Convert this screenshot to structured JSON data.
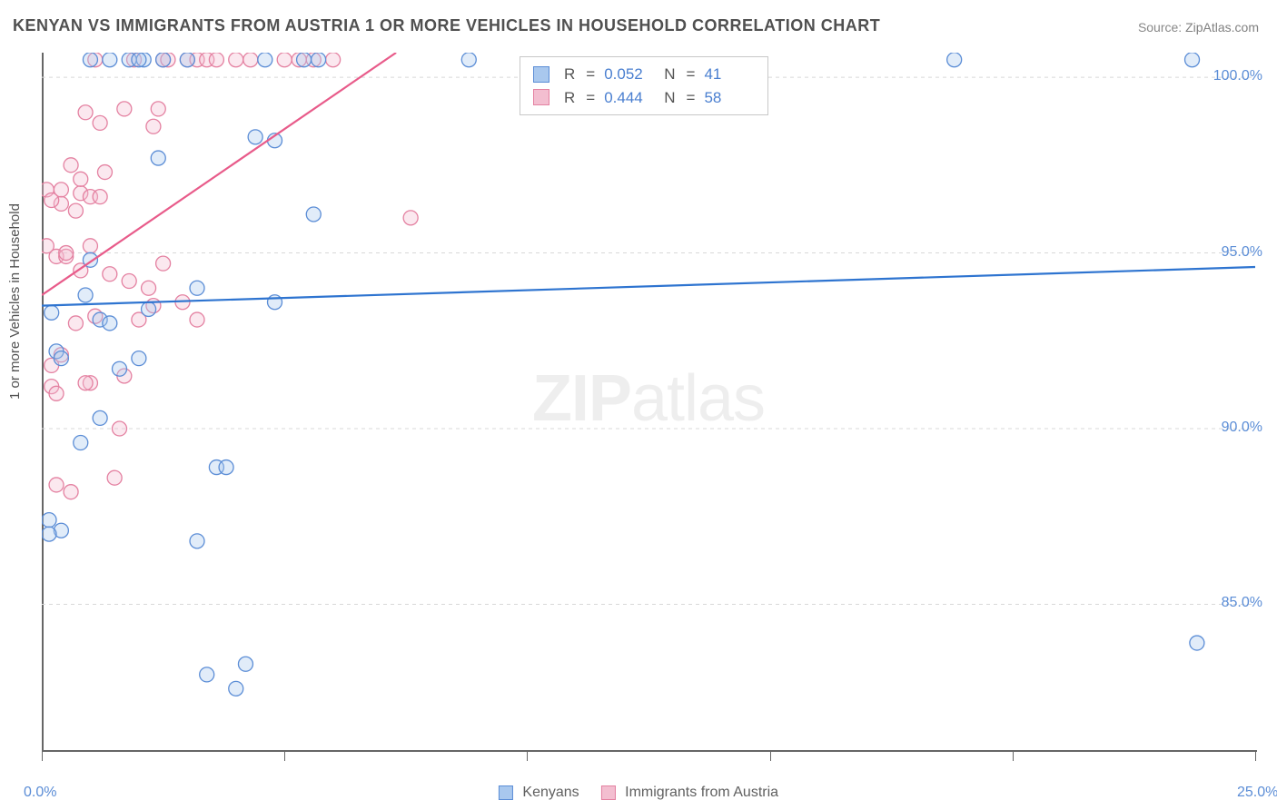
{
  "title": "KENYAN VS IMMIGRANTS FROM AUSTRIA 1 OR MORE VEHICLES IN HOUSEHOLD CORRELATION CHART",
  "source": {
    "label": "Source:",
    "value": "ZipAtlas.com"
  },
  "watermark": {
    "zip": "ZIP",
    "atlas": "atlas"
  },
  "chart": {
    "type": "scatter",
    "xlim": [
      0,
      25
    ],
    "ylim": [
      80.8,
      100.7
    ],
    "ylabel": "1 or more Vehicles in Household",
    "yticks": [
      {
        "v": 100.0,
        "label": "100.0%"
      },
      {
        "v": 95.0,
        "label": "95.0%"
      },
      {
        "v": 90.0,
        "label": "90.0%"
      },
      {
        "v": 85.0,
        "label": "85.0%"
      }
    ],
    "xticks": [
      {
        "v": 0,
        "label": "0.0%"
      },
      {
        "v": 5,
        "label": ""
      },
      {
        "v": 10,
        "label": ""
      },
      {
        "v": 15,
        "label": ""
      },
      {
        "v": 20,
        "label": ""
      },
      {
        "v": 25,
        "label": "25.0%"
      }
    ],
    "grid_color": "#d8d8d8",
    "axis_color": "#666666",
    "background_color": "#ffffff",
    "marker_radius": 8,
    "marker_opacity": 0.35,
    "line_width": 2.2,
    "series": [
      {
        "name": "Kenyans",
        "fill": "#a9c8ee",
        "stroke": "#5b8dd6",
        "line_color": "#2e74d0",
        "trend": {
          "x1": 0,
          "y1": 93.5,
          "x2": 25,
          "y2": 94.6
        },
        "stats": {
          "R": "0.052",
          "N": "41"
        },
        "points": [
          [
            0.2,
            93.3
          ],
          [
            0.3,
            92.2
          ],
          [
            0.4,
            87.1
          ],
          [
            0.4,
            92.0
          ],
          [
            0.8,
            89.6
          ],
          [
            0.9,
            93.8
          ],
          [
            1.0,
            100.5
          ],
          [
            1.0,
            94.8
          ],
          [
            1.2,
            93.1
          ],
          [
            1.2,
            90.3
          ],
          [
            1.4,
            100.5
          ],
          [
            1.4,
            93.0
          ],
          [
            1.6,
            91.7
          ],
          [
            1.8,
            100.5
          ],
          [
            2.0,
            92.0
          ],
          [
            2.1,
            100.5
          ],
          [
            2.2,
            93.4
          ],
          [
            2.4,
            97.7
          ],
          [
            2.5,
            100.5
          ],
          [
            3.0,
            100.5
          ],
          [
            3.2,
            94.0
          ],
          [
            3.2,
            86.8
          ],
          [
            3.4,
            83.0
          ],
          [
            3.6,
            88.9
          ],
          [
            3.8,
            88.9
          ],
          [
            4.0,
            82.6
          ],
          [
            4.2,
            83.3
          ],
          [
            4.4,
            98.3
          ],
          [
            4.6,
            100.5
          ],
          [
            4.8,
            93.6
          ],
          [
            4.8,
            98.2
          ],
          [
            5.4,
            100.5
          ],
          [
            5.6,
            96.1
          ],
          [
            5.7,
            100.5
          ],
          [
            8.8,
            100.5
          ],
          [
            18.8,
            100.5
          ],
          [
            23.7,
            100.5
          ],
          [
            23.8,
            83.9
          ],
          [
            0.15,
            87.4
          ],
          [
            0.15,
            87.0
          ],
          [
            2.0,
            100.5
          ]
        ]
      },
      {
        "name": "Immigrants from Austria",
        "fill": "#f3bed0",
        "stroke": "#e481a1",
        "line_color": "#e85b8a",
        "trend": {
          "x1": 0,
          "y1": 93.8,
          "x2": 7.3,
          "y2": 100.7
        },
        "stats": {
          "R": "0.444",
          "N": "58"
        },
        "points": [
          [
            0.1,
            96.8
          ],
          [
            0.1,
            95.2
          ],
          [
            0.2,
            91.2
          ],
          [
            0.2,
            91.8
          ],
          [
            0.3,
            94.9
          ],
          [
            0.3,
            88.4
          ],
          [
            0.3,
            91.0
          ],
          [
            0.4,
            96.4
          ],
          [
            0.4,
            96.8
          ],
          [
            0.5,
            94.9
          ],
          [
            0.5,
            95.0
          ],
          [
            0.6,
            97.5
          ],
          [
            0.6,
            88.2
          ],
          [
            0.7,
            93.0
          ],
          [
            0.7,
            96.2
          ],
          [
            0.8,
            94.5
          ],
          [
            0.8,
            96.7
          ],
          [
            0.8,
            97.1
          ],
          [
            0.9,
            99.0
          ],
          [
            1.0,
            96.6
          ],
          [
            1.0,
            91.3
          ],
          [
            1.0,
            95.2
          ],
          [
            1.1,
            100.5
          ],
          [
            1.2,
            96.6
          ],
          [
            1.2,
            98.7
          ],
          [
            1.3,
            97.3
          ],
          [
            1.4,
            94.4
          ],
          [
            1.5,
            88.6
          ],
          [
            1.6,
            90.0
          ],
          [
            1.7,
            99.1
          ],
          [
            1.8,
            94.2
          ],
          [
            1.9,
            100.5
          ],
          [
            2.0,
            93.1
          ],
          [
            2.2,
            94.0
          ],
          [
            2.3,
            93.5
          ],
          [
            2.3,
            98.6
          ],
          [
            2.4,
            99.1
          ],
          [
            2.5,
            100.5
          ],
          [
            2.5,
            94.7
          ],
          [
            2.6,
            100.5
          ],
          [
            2.9,
            93.6
          ],
          [
            3.0,
            100.5
          ],
          [
            3.2,
            100.5
          ],
          [
            3.2,
            93.1
          ],
          [
            3.4,
            100.5
          ],
          [
            3.6,
            100.5
          ],
          [
            4.0,
            100.5
          ],
          [
            4.3,
            100.5
          ],
          [
            5.0,
            100.5
          ],
          [
            5.3,
            100.5
          ],
          [
            5.6,
            100.5
          ],
          [
            6.0,
            100.5
          ],
          [
            7.6,
            96.0
          ],
          [
            1.1,
            93.2
          ],
          [
            0.4,
            92.1
          ],
          [
            0.9,
            91.3
          ],
          [
            1.7,
            91.5
          ],
          [
            0.2,
            96.5
          ]
        ]
      }
    ]
  },
  "legend_bottom": [
    {
      "label": "Kenyans",
      "fill": "#a9c8ee",
      "stroke": "#5b8dd6"
    },
    {
      "label": "Immigrants from Austria",
      "fill": "#f3bed0",
      "stroke": "#e481a1"
    }
  ]
}
